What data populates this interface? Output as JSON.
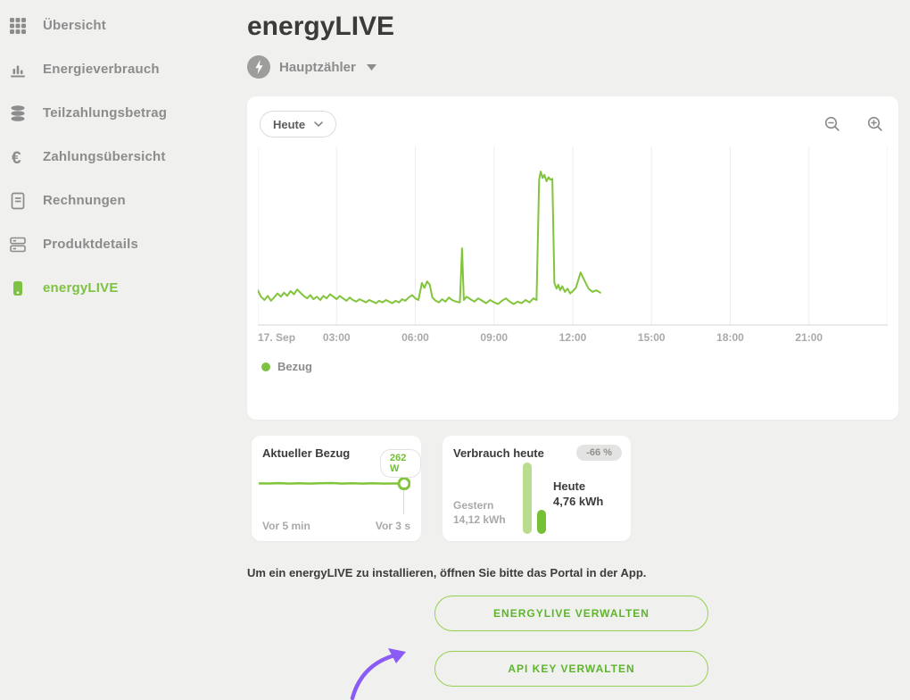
{
  "colors": {
    "green": "#7dc242",
    "green_line": "#82c43c",
    "green_light_bar": "#b9dc8e",
    "green_dark_bar": "#76c035",
    "button_border": "#97cf52",
    "button_text": "#5eb52c",
    "purple_arrow": "#8a5cf5",
    "gray_text": "#8c8c8c",
    "dark_text": "#3b3b3a",
    "background": "#f0f0ee",
    "card": "#ffffff",
    "gridline": "#ededeb"
  },
  "sidebar": {
    "items": [
      {
        "label": "Übersicht",
        "icon": "grid-icon",
        "active": false
      },
      {
        "label": "Energieverbrauch",
        "icon": "bar-chart-icon",
        "active": false
      },
      {
        "label": "Teilzahlungsbetrag",
        "icon": "coins-stack-icon",
        "active": false
      },
      {
        "label": "Zahlungsübersicht",
        "icon": "euro-icon",
        "active": false
      },
      {
        "label": "Rechnungen",
        "icon": "invoice-document-icon",
        "active": false
      },
      {
        "label": "Produktdetails",
        "icon": "product-list-icon",
        "active": false
      },
      {
        "label": "energyLIVE",
        "icon": "energy-device-icon",
        "active": true
      }
    ]
  },
  "header": {
    "title": "energyLIVE",
    "meter_label": "Hauptzähler"
  },
  "chart_card": {
    "range_label": "Heute",
    "legend": "Bezug"
  },
  "chart_data": [
    {
      "type": "line",
      "name": "Bezug",
      "title": "Leistungsbezug heute (17. Sep), Hauptzähler",
      "unit": "W",
      "xlim": [
        0,
        24
      ],
      "ylim": [
        0,
        2200
      ],
      "grid": "vertical, every 3 h",
      "legend_position": "bottom-left",
      "xticks": [
        {
          "v": 0,
          "label": "17. Sep"
        },
        {
          "v": 3,
          "label": "03:00"
        },
        {
          "v": 6,
          "label": "06:00"
        },
        {
          "v": 9,
          "label": "09:00"
        },
        {
          "v": 12,
          "label": "12:00"
        },
        {
          "v": 15,
          "label": "15:00"
        },
        {
          "v": 18,
          "label": "18:00"
        },
        {
          "v": 21,
          "label": "21:00"
        }
      ],
      "points": [
        [
          0,
          430
        ],
        [
          0.12,
          350
        ],
        [
          0.25,
          310
        ],
        [
          0.38,
          360
        ],
        [
          0.5,
          300
        ],
        [
          0.62,
          340
        ],
        [
          0.75,
          390
        ],
        [
          0.88,
          350
        ],
        [
          1,
          400
        ],
        [
          1.12,
          360
        ],
        [
          1.25,
          420
        ],
        [
          1.38,
          380
        ],
        [
          1.5,
          440
        ],
        [
          1.62,
          400
        ],
        [
          1.75,
          360
        ],
        [
          1.88,
          330
        ],
        [
          2,
          370
        ],
        [
          2.12,
          320
        ],
        [
          2.25,
          350
        ],
        [
          2.38,
          310
        ],
        [
          2.5,
          360
        ],
        [
          2.62,
          330
        ],
        [
          2.75,
          380
        ],
        [
          2.88,
          350
        ],
        [
          3,
          320
        ],
        [
          3.12,
          360
        ],
        [
          3.25,
          330
        ],
        [
          3.38,
          300
        ],
        [
          3.5,
          340
        ],
        [
          3.62,
          310
        ],
        [
          3.75,
          290
        ],
        [
          3.88,
          320
        ],
        [
          4,
          300
        ],
        [
          4.12,
          280
        ],
        [
          4.25,
          310
        ],
        [
          4.38,
          290
        ],
        [
          4.5,
          270
        ],
        [
          4.62,
          300
        ],
        [
          4.75,
          280
        ],
        [
          4.88,
          310
        ],
        [
          5,
          290
        ],
        [
          5.12,
          270
        ],
        [
          5.25,
          300
        ],
        [
          5.38,
          280
        ],
        [
          5.5,
          320
        ],
        [
          5.62,
          300
        ],
        [
          5.75,
          340
        ],
        [
          5.88,
          370
        ],
        [
          6,
          330
        ],
        [
          6.12,
          310
        ],
        [
          6.25,
          520
        ],
        [
          6.35,
          460
        ],
        [
          6.45,
          540
        ],
        [
          6.55,
          500
        ],
        [
          6.65,
          340
        ],
        [
          6.78,
          300
        ],
        [
          6.9,
          280
        ],
        [
          7.02,
          320
        ],
        [
          7.15,
          290
        ],
        [
          7.28,
          340
        ],
        [
          7.4,
          310
        ],
        [
          7.55,
          290
        ],
        [
          7.7,
          280
        ],
        [
          7.78,
          950
        ],
        [
          7.85,
          310
        ],
        [
          7.95,
          350
        ],
        [
          8.1,
          320
        ],
        [
          8.25,
          290
        ],
        [
          8.4,
          330
        ],
        [
          8.55,
          300
        ],
        [
          8.7,
          270
        ],
        [
          8.85,
          310
        ],
        [
          9,
          280
        ],
        [
          9.15,
          260
        ],
        [
          9.3,
          300
        ],
        [
          9.45,
          330
        ],
        [
          9.6,
          290
        ],
        [
          9.75,
          260
        ],
        [
          9.9,
          290
        ],
        [
          10.05,
          270
        ],
        [
          10.2,
          310
        ],
        [
          10.35,
          280
        ],
        [
          10.5,
          330
        ],
        [
          10.62,
          310
        ],
        [
          10.72,
          1800
        ],
        [
          10.78,
          1900
        ],
        [
          10.85,
          1820
        ],
        [
          10.92,
          1860
        ],
        [
          11,
          1780
        ],
        [
          11.08,
          1830
        ],
        [
          11.15,
          1800
        ],
        [
          11.22,
          1810
        ],
        [
          11.3,
          520
        ],
        [
          11.38,
          450
        ],
        [
          11.45,
          500
        ],
        [
          11.52,
          430
        ],
        [
          11.6,
          480
        ],
        [
          11.7,
          410
        ],
        [
          11.8,
          450
        ],
        [
          11.9,
          390
        ],
        [
          12,
          420
        ],
        [
          12.12,
          460
        ],
        [
          12.3,
          650
        ],
        [
          12.45,
          550
        ],
        [
          12.6,
          450
        ],
        [
          12.75,
          410
        ],
        [
          12.9,
          430
        ],
        [
          13.05,
          400
        ]
      ]
    },
    {
      "type": "line",
      "name": "Aktueller Bezug (Sparkline)",
      "unit": "W",
      "current_value": 262,
      "ylim": [
        0,
        600
      ],
      "points": [
        [
          0,
          268
        ],
        [
          0.07,
          266
        ],
        [
          0.14,
          274
        ],
        [
          0.21,
          264
        ],
        [
          0.28,
          272
        ],
        [
          0.35,
          262
        ],
        [
          0.42,
          270
        ],
        [
          0.5,
          276
        ],
        [
          0.57,
          264
        ],
        [
          0.64,
          272
        ],
        [
          0.71,
          262
        ],
        [
          0.78,
          270
        ],
        [
          0.86,
          264
        ],
        [
          0.93,
          266
        ],
        [
          1,
          262
        ]
      ]
    },
    {
      "type": "bar",
      "name": "Verbrauch heute vs. gestern",
      "unit": "kWh",
      "categories": [
        "Gestern",
        "Heute"
      ],
      "values": [
        14.12,
        4.76
      ],
      "delta_label": "-66 %"
    }
  ],
  "cards": {
    "current": {
      "title": "Aktueller Bezug",
      "value_label": "262 W",
      "left_label": "Vor 5 min",
      "right_label": "Vor 3 s"
    },
    "today": {
      "title": "Verbrauch heute",
      "badge": "-66 %",
      "yesterday_label": "Gestern",
      "yesterday_value": "14,12 kWh",
      "today_label": "Heute",
      "today_value": "4,76 kWh"
    }
  },
  "note": "Um ein energyLIVE zu installieren, öffnen Sie bitte das Portal in der App.",
  "actions": {
    "manage_energylive": "ENERGYLIVE VERWALTEN",
    "manage_api_key": "API KEY VERWALTEN"
  }
}
